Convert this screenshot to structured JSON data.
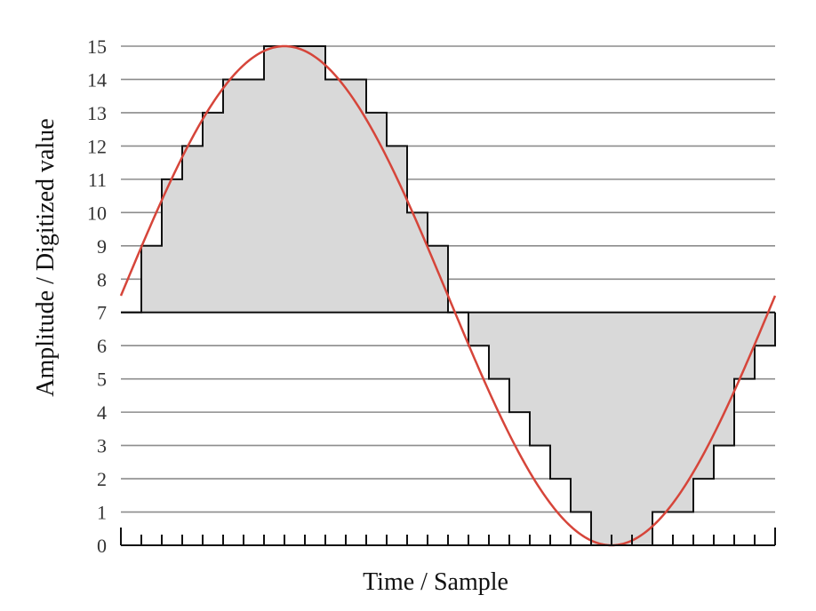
{
  "chart_data": {
    "type": "line",
    "title": "",
    "xlabel": "Time / Sample",
    "ylabel": "Amplitude / Digitized value",
    "ylim": [
      0,
      15
    ],
    "yticks": [
      0,
      1,
      2,
      3,
      4,
      5,
      6,
      7,
      8,
      9,
      10,
      11,
      12,
      13,
      14,
      15
    ],
    "xlim": [
      0,
      32
    ],
    "x_tick_count": 33,
    "grid": "horizontal",
    "series": [
      {
        "kind": "analog-signal",
        "color": "#d6453a",
        "formula": "7.5 + 7.5*sin(2*pi*t/32), t in samples"
      },
      {
        "kind": "digitized-steps",
        "color": "#111111",
        "fill": "#d9d9d9",
        "baseline": 7,
        "x": [
          0,
          1,
          2,
          3,
          4,
          5,
          6,
          7,
          8,
          9,
          10,
          11,
          12,
          13,
          14,
          15,
          16,
          17,
          18,
          19,
          20,
          21,
          22,
          23,
          24,
          25,
          26,
          27,
          28,
          29,
          30,
          31
        ],
        "values": [
          7,
          9,
          11,
          12,
          13,
          14,
          14,
          15,
          15,
          15,
          14,
          14,
          13,
          12,
          10,
          9,
          7,
          6,
          5,
          4,
          3,
          2,
          1,
          0,
          0,
          0,
          1,
          1,
          2,
          3,
          5,
          6
        ]
      }
    ]
  }
}
